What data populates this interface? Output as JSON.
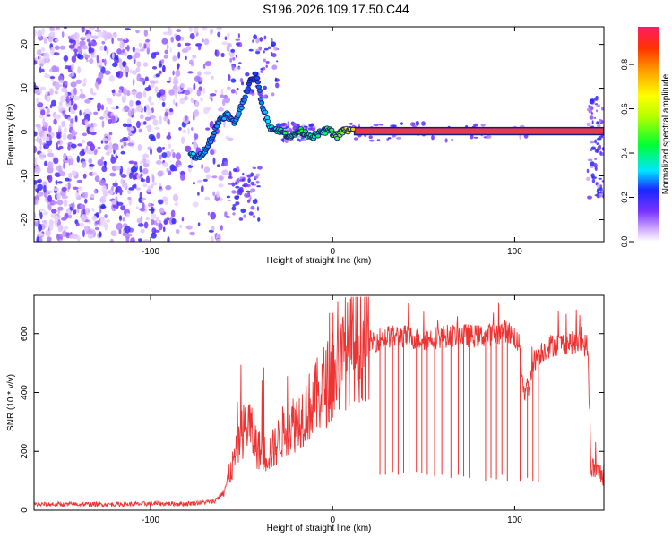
{
  "title": "S196.2026.109.17.50.C44",
  "colors": {
    "snr_line": "#ee3333",
    "axis": "#000000",
    "track_outline": "#1a1a80",
    "track_fill": "#e83a4a"
  },
  "chart_data": [
    {
      "type": "heatmap",
      "name": "spectrogram",
      "xlabel": "Height of straight line (km)",
      "ylabel": "Frequency (Hz)",
      "xlim": [
        -164,
        149
      ],
      "ylim": [
        -25,
        24
      ],
      "x_ticks": [
        -100,
        0,
        100
      ],
      "x_tick_labels": [
        "-100",
        "0",
        "100"
      ],
      "y_ticks": [
        -20,
        -10,
        0,
        10,
        20
      ],
      "y_tick_labels": [
        "-20",
        "-10",
        "0",
        "10",
        "20"
      ],
      "noise_region_x": [
        -164,
        -60
      ],
      "signal_track": {
        "x": [
          -78,
          -74,
          -70,
          -66,
          -62,
          -58,
          -54,
          -50,
          -46,
          -42,
          -38,
          -34,
          -30,
          -26,
          -22,
          -18,
          -14,
          -10,
          -6,
          -2,
          2,
          6,
          10,
          20,
          40,
          60,
          80,
          100,
          120,
          140,
          149
        ],
        "freq": [
          -5,
          -6,
          -4,
          -1,
          3,
          4,
          2,
          6,
          11,
          13,
          5,
          1,
          0.5,
          -0.5,
          -1,
          0.3,
          -0.5,
          -1,
          0,
          0.5,
          -1,
          0.3,
          0.5,
          0.3,
          0.2,
          0.2,
          0.2,
          0.2,
          0.2,
          0.2,
          0.2
        ],
        "amplitude": [
          0.35,
          0.3,
          0.3,
          0.28,
          0.3,
          0.32,
          0.3,
          0.3,
          0.25,
          0.25,
          0.3,
          0.35,
          0.4,
          0.45,
          0.45,
          0.45,
          0.45,
          0.4,
          0.4,
          0.45,
          0.5,
          0.55,
          0.7,
          0.95,
          0.95,
          0.95,
          0.95,
          0.95,
          0.95,
          0.95,
          0.9
        ]
      }
    },
    {
      "type": "colorbar",
      "name": "amplitude-colorbar",
      "label": "Normalized spectral amplitude",
      "range": [
        0,
        0.97
      ],
      "ticks": [
        0,
        0.2,
        0.4,
        0.6,
        0.8
      ],
      "tick_labels": [
        "0.0",
        "0.2",
        "0.4",
        "0.6",
        "0.8"
      ]
    },
    {
      "type": "line",
      "name": "snr",
      "xlabel": "Height of straight line (km)",
      "ylabel": "SNR (10 * v/v)",
      "xlim": [
        -164,
        149
      ],
      "ylim": [
        0,
        730
      ],
      "x_ticks": [
        -100,
        0,
        100
      ],
      "x_tick_labels": [
        "-100",
        "0",
        "100"
      ],
      "y_ticks": [
        0,
        200,
        400,
        600
      ],
      "y_tick_labels": [
        "0",
        "200",
        "400",
        "600"
      ],
      "envelope": {
        "x": [
          -164,
          -140,
          -120,
          -100,
          -80,
          -65,
          -60,
          -55,
          -50,
          -46,
          -44,
          -42,
          -40,
          -36,
          -32,
          -28,
          -24,
          -20,
          -16,
          -10,
          -5,
          0,
          5,
          10,
          15,
          20,
          25,
          30,
          40,
          50,
          60,
          70,
          80,
          90,
          95,
          100,
          103,
          105,
          108,
          110,
          112,
          115,
          120,
          130,
          140,
          142,
          145,
          149
        ],
        "y": [
          20,
          20,
          20,
          22,
          22,
          30,
          60,
          150,
          260,
          300,
          250,
          220,
          200,
          190,
          210,
          260,
          290,
          300,
          330,
          370,
          420,
          450,
          500,
          550,
          560,
          570,
          580,
          590,
          590,
          580,
          590,
          595,
          590,
          600,
          610,
          590,
          550,
          400,
          430,
          500,
          520,
          540,
          560,
          570,
          560,
          150,
          130,
          120
        ]
      },
      "dips": {
        "x": [
          26,
          29,
          33,
          36,
          39,
          42,
          46,
          49,
          52,
          56,
          60,
          65,
          69,
          72,
          75,
          84,
          87,
          90,
          93,
          96,
          103,
          107,
          110,
          113
        ],
        "y": [
          120,
          120,
          130,
          120,
          125,
          120,
          130,
          125,
          120,
          115,
          120,
          110,
          120,
          115,
          110,
          100,
          110,
          105,
          120,
          100,
          100,
          110,
          100,
          95
        ]
      }
    }
  ]
}
